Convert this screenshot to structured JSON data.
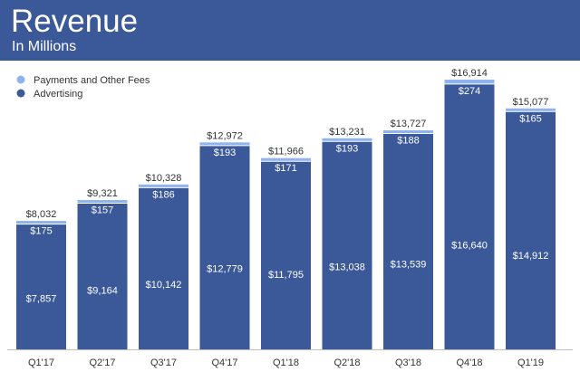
{
  "header": {
    "title": "Revenue",
    "subtitle": "In Millions"
  },
  "chart_data": {
    "type": "bar",
    "stacked": true,
    "categories": [
      "Q1'17",
      "Q2'17",
      "Q3'17",
      "Q4'17",
      "Q1'18",
      "Q2'18",
      "Q3'18",
      "Q4'18",
      "Q1'19"
    ],
    "series": [
      {
        "name": "Advertising",
        "color": "#3b5998",
        "values": [
          7857,
          9164,
          10142,
          12779,
          11795,
          13038,
          13539,
          16640,
          14912
        ]
      },
      {
        "name": "Payments and Other Fees",
        "color": "#8fb3ec",
        "values": [
          175,
          157,
          186,
          193,
          171,
          193,
          188,
          274,
          165
        ]
      }
    ],
    "totals": [
      8032,
      9321,
      10328,
      12972,
      11966,
      13231,
      13727,
      16914,
      15077
    ],
    "labels": {
      "advertising": [
        "$7,857",
        "$9,164",
        "$10,142",
        "$12,779",
        "$11,795",
        "$13,038",
        "$13,539",
        "$16,640",
        "$14,912"
      ],
      "payments": [
        "$175",
        "$157",
        "$186",
        "$193",
        "$171",
        "$193",
        "$188",
        "$274",
        "$165"
      ],
      "totals": [
        "$8,032",
        "$9,321",
        "$10,328",
        "$12,972",
        "$11,966",
        "$13,231",
        "$13,727",
        "$16,914",
        "$15,077"
      ]
    },
    "legend_position": "top-left",
    "ylim": [
      0,
      16914
    ],
    "grid": false
  }
}
